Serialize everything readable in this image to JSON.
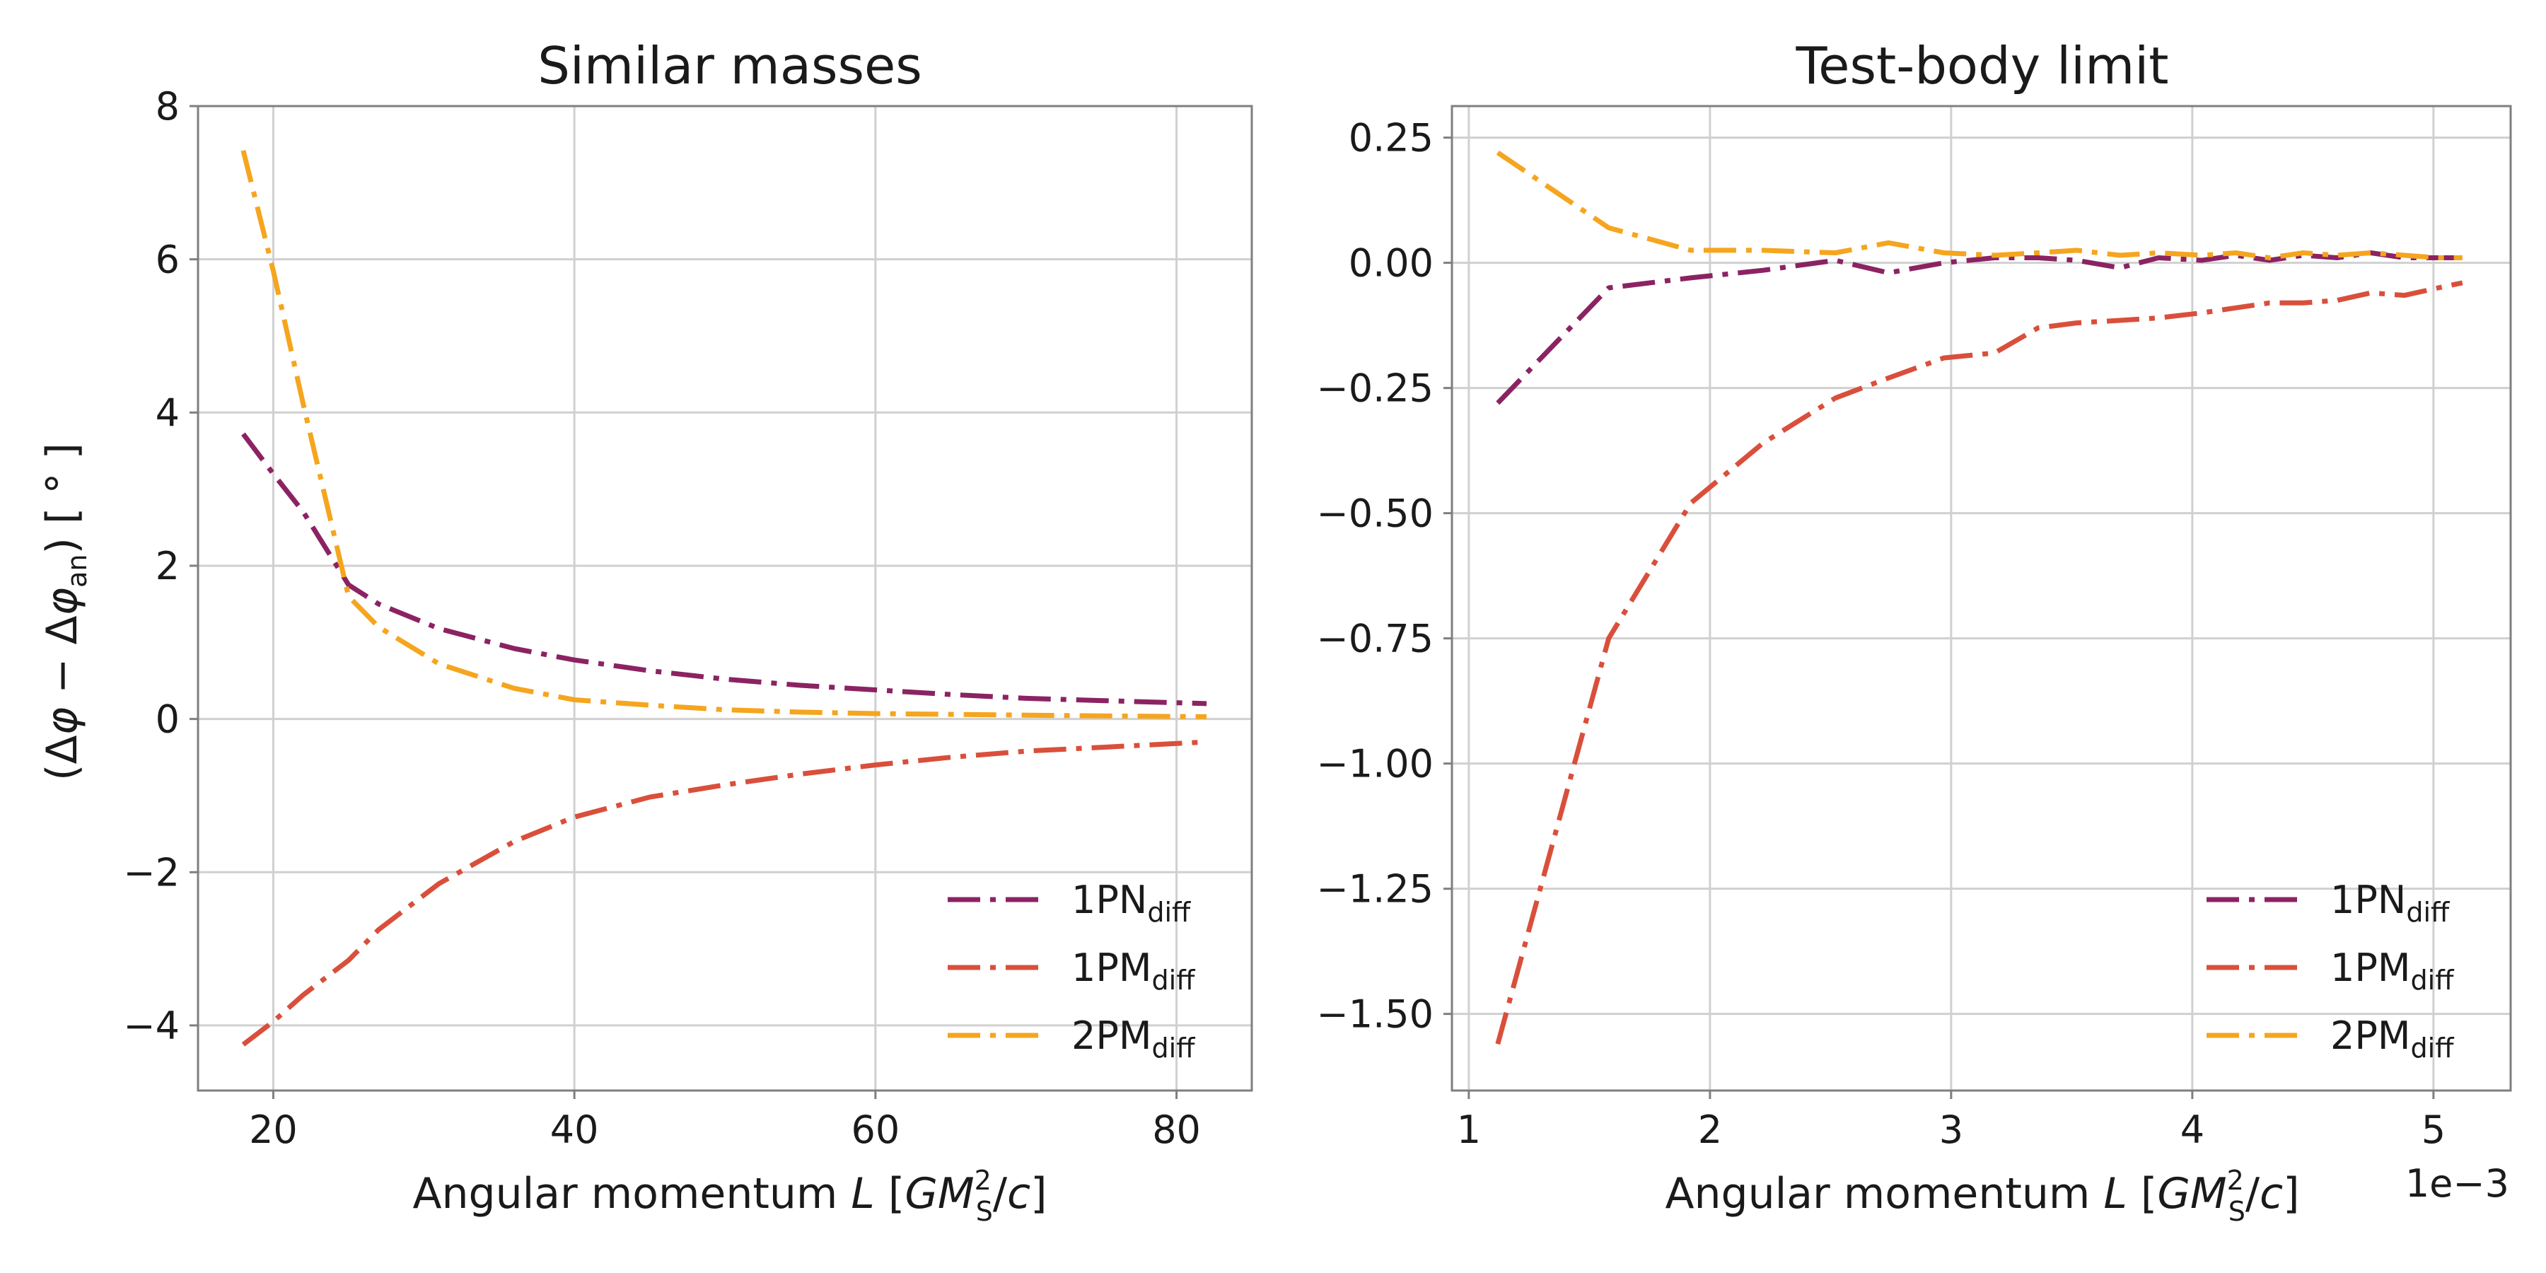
{
  "chart_data": [
    {
      "type": "line",
      "title": "Similar masses",
      "xlabel": "Angular momentum L [GM_S^2/c]",
      "ylabel": "(Δφ − Δφ_an) [°]",
      "xlim": [
        15,
        85
      ],
      "ylim": [
        -4.85,
        8.0
      ],
      "xticks": [
        "20",
        "40",
        "60",
        "80"
      ],
      "yticks": [
        "8",
        "6",
        "4",
        "2",
        "0",
        "−2",
        "−4"
      ],
      "grid": true,
      "legend": "lower-right",
      "x": [
        18,
        20,
        22,
        25,
        27,
        31,
        36,
        40,
        45,
        50,
        55,
        60,
        65,
        70,
        75,
        82
      ],
      "series": [
        {
          "name": "1PN_diff",
          "color": "#8b2363",
          "values": [
            3.72,
            3.2,
            2.7,
            1.75,
            1.5,
            1.18,
            0.92,
            0.77,
            0.63,
            0.52,
            0.44,
            0.38,
            0.32,
            0.27,
            0.24,
            0.2
          ]
        },
        {
          "name": "1PM_diff",
          "color": "#d94f3b",
          "values": [
            -4.25,
            -3.95,
            -3.6,
            -3.15,
            -2.75,
            -2.15,
            -1.6,
            -1.28,
            -1.02,
            -0.86,
            -0.72,
            -0.6,
            -0.5,
            -0.42,
            -0.37,
            -0.3
          ]
        },
        {
          "name": "2PM_diff",
          "color": "#f5a51e",
          "values": [
            7.42,
            5.85,
            4.1,
            1.6,
            1.2,
            0.72,
            0.4,
            0.25,
            0.18,
            0.12,
            0.09,
            0.07,
            0.06,
            0.05,
            0.04,
            0.03
          ]
        }
      ]
    },
    {
      "type": "line",
      "title": "Test-body limit",
      "xlabel": "Angular momentum L [GM_S^2/c]",
      "ylabel": "",
      "x_multiplier": "1e−3",
      "xlim": [
        0.00093,
        0.00532
      ],
      "ylim": [
        -1.653,
        0.313
      ],
      "xticks": [
        "1",
        "2",
        "3",
        "4",
        "5"
      ],
      "yticks": [
        "0.25",
        "0.00",
        "−0.25",
        "−0.50",
        "−0.75",
        "−1.00",
        "−1.25",
        "−1.50"
      ],
      "grid": true,
      "legend": "lower-right",
      "x": [
        0.00112,
        0.00158,
        0.00192,
        0.00222,
        0.00252,
        0.00274,
        0.00297,
        0.00318,
        0.00336,
        0.00352,
        0.0037,
        0.00386,
        0.00404,
        0.00418,
        0.00432,
        0.00446,
        0.0046,
        0.00474,
        0.00488,
        0.00502,
        0.00512
      ],
      "series": [
        {
          "name": "1PN_diff",
          "color": "#8b2363",
          "values": [
            -0.28,
            -0.05,
            -0.03,
            -0.015,
            0.005,
            -0.02,
            0.0,
            0.01,
            0.01,
            0.005,
            -0.01,
            0.01,
            0.005,
            0.015,
            0.005,
            0.015,
            0.01,
            0.02,
            0.01,
            0.01,
            0.01
          ]
        },
        {
          "name": "1PM_diff",
          "color": "#d94f3b",
          "values": [
            -1.56,
            -0.75,
            -0.48,
            -0.36,
            -0.27,
            -0.23,
            -0.19,
            -0.18,
            -0.13,
            -0.12,
            -0.115,
            -0.11,
            -0.1,
            -0.09,
            -0.08,
            -0.08,
            -0.075,
            -0.06,
            -0.065,
            -0.05,
            -0.04
          ]
        },
        {
          "name": "2PM_diff",
          "color": "#f5a51e",
          "values": [
            0.22,
            0.07,
            0.025,
            0.025,
            0.02,
            0.04,
            0.02,
            0.015,
            0.02,
            0.025,
            0.015,
            0.02,
            0.015,
            0.02,
            0.01,
            0.02,
            0.015,
            0.02,
            0.015,
            0.01,
            0.01
          ]
        }
      ]
    }
  ]
}
